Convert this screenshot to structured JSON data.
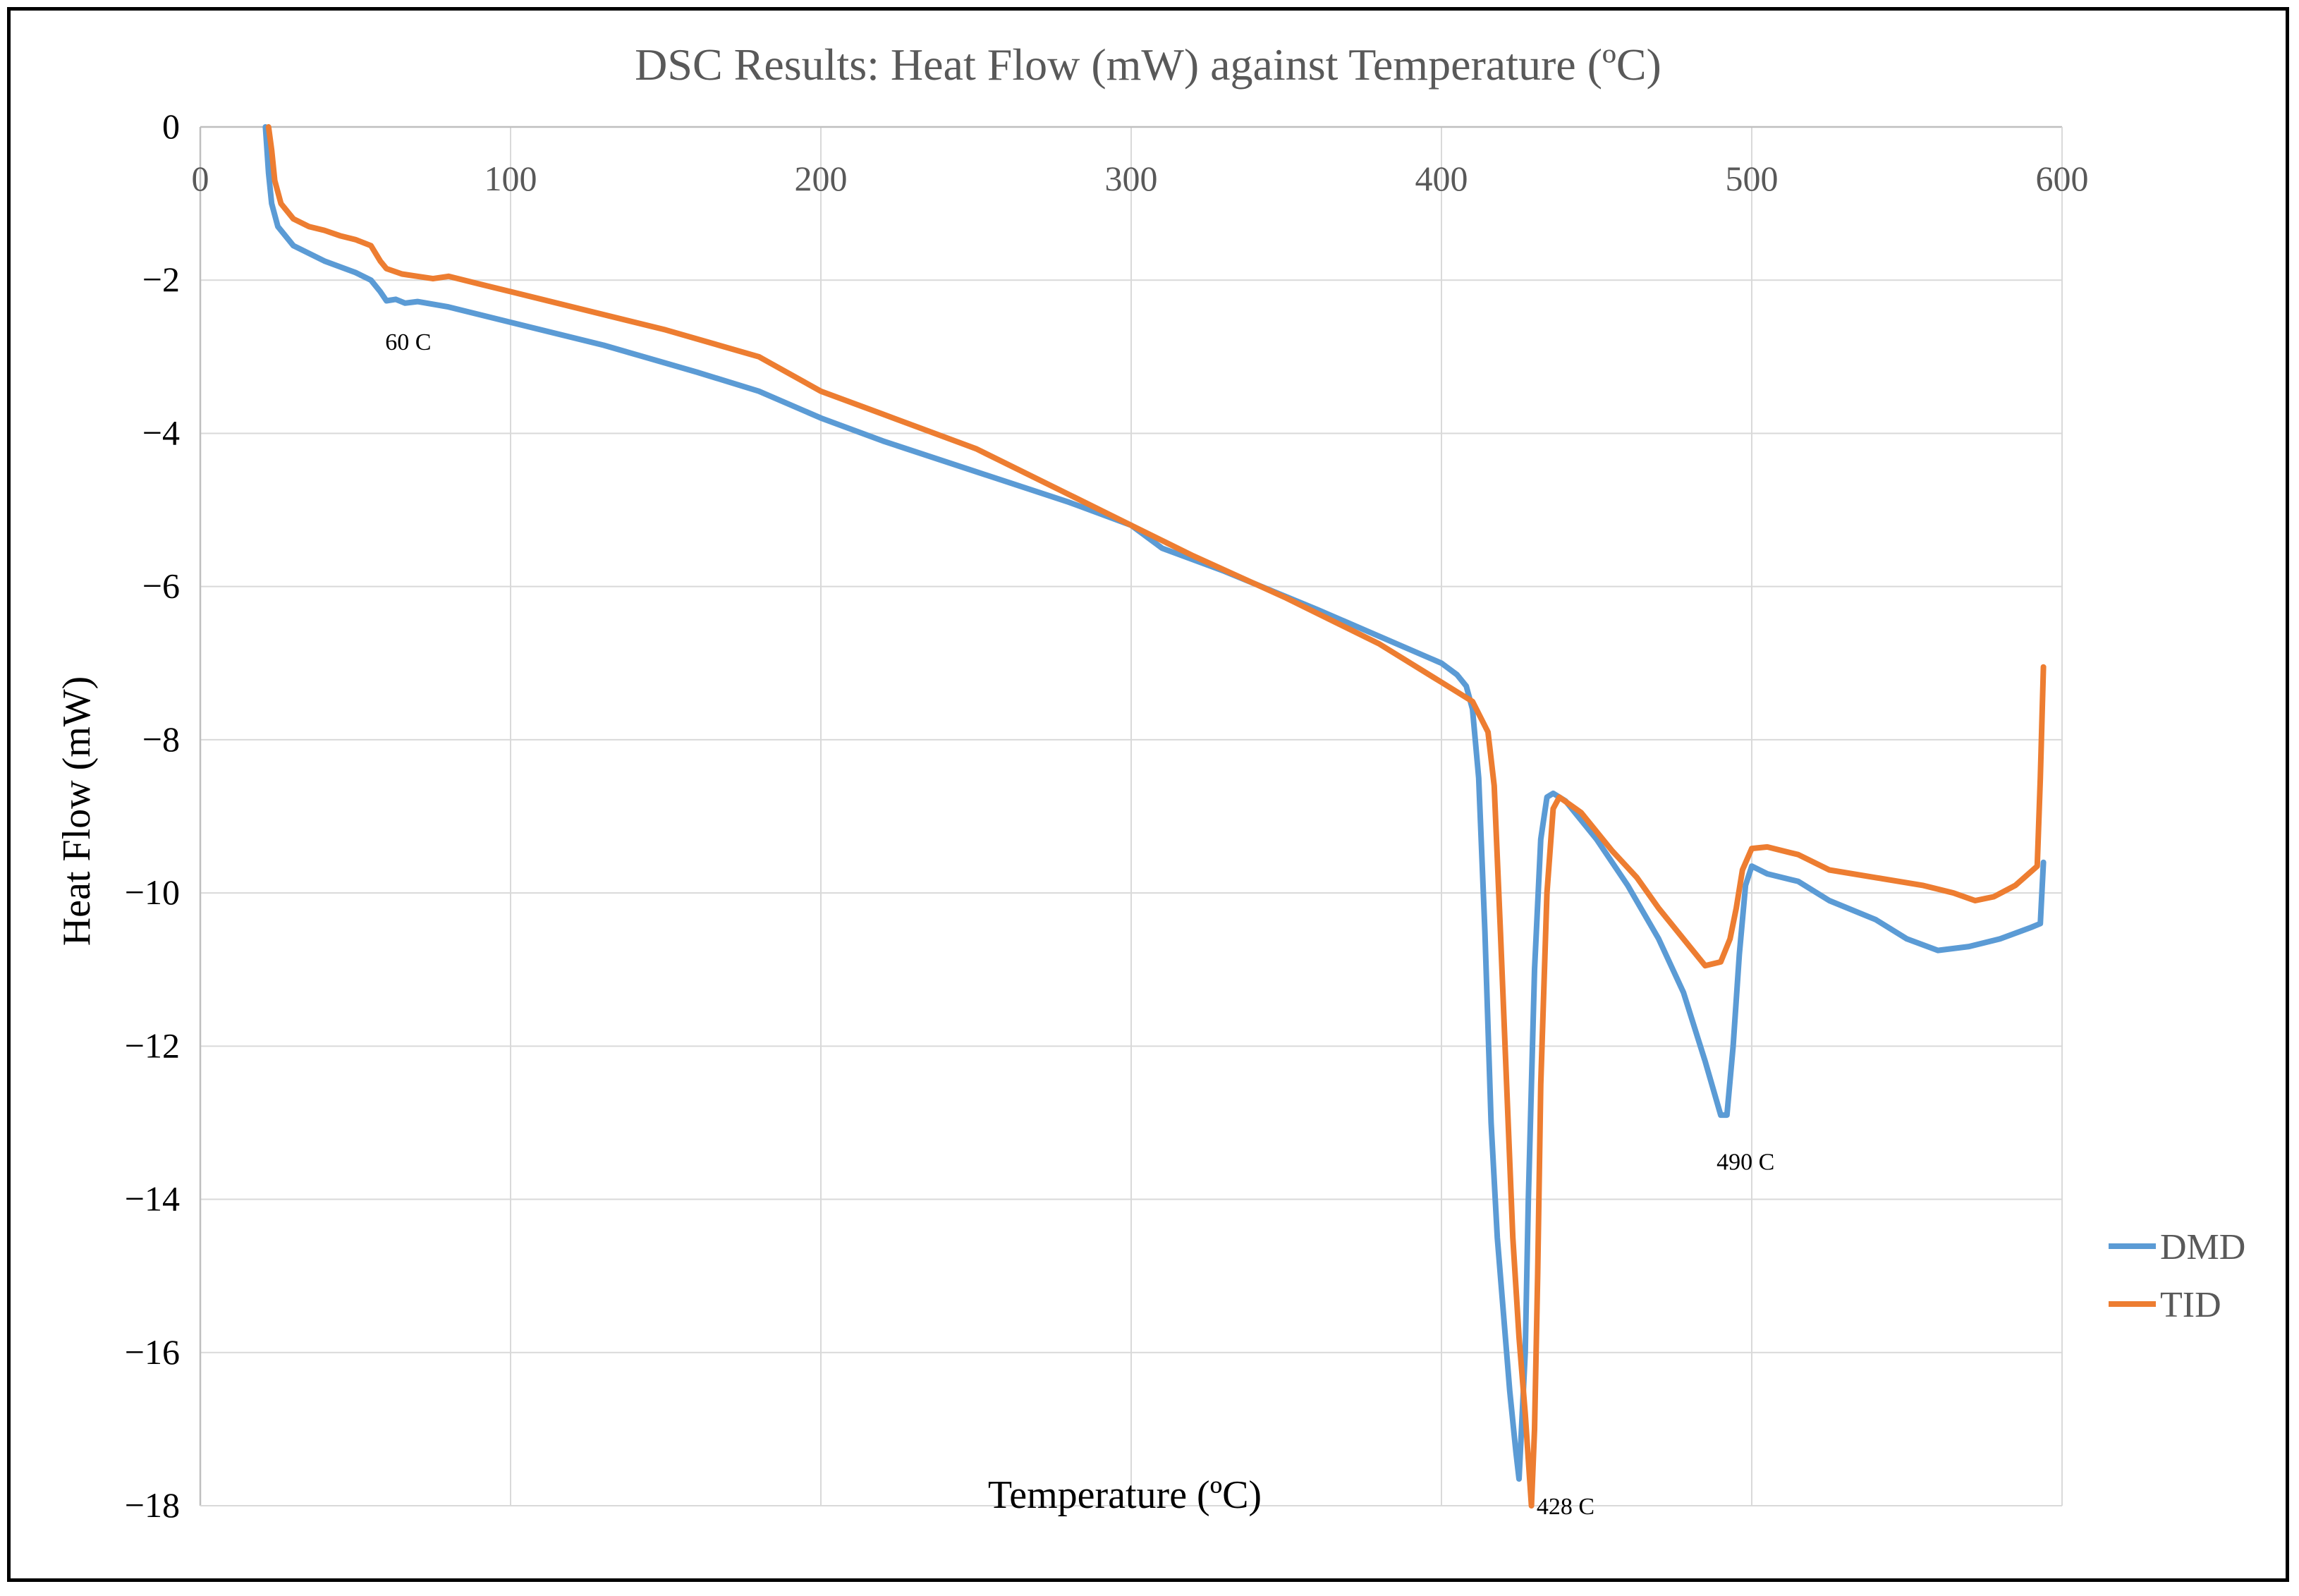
{
  "chart_data": {
    "type": "line",
    "title": "DSC Results: Heat Flow (mW) against Temperature (ºC)",
    "xlabel": "Temperature (ºC)",
    "ylabel": "Heat Flow (mW)",
    "xlim": [
      0,
      600
    ],
    "ylim": [
      -18,
      0
    ],
    "x_ticks": [
      0,
      100,
      200,
      300,
      400,
      500,
      600
    ],
    "x_tick_labels": [
      "0",
      "100",
      "200",
      "300",
      "400",
      "500",
      "600"
    ],
    "y_ticks": [
      0,
      -2,
      -4,
      -6,
      -8,
      -10,
      -12,
      -14,
      -16,
      -18
    ],
    "y_tick_labels": [
      "0",
      "−2",
      "−4",
      "−6",
      "−8",
      "−10",
      "−12",
      "−14",
      "−16",
      "−18"
    ],
    "grid": true,
    "legend_position": "right",
    "series": [
      {
        "name": "DMD",
        "color": "#5b9bd5",
        "points": [
          [
            21,
            0
          ],
          [
            22,
            -0.6
          ],
          [
            23,
            -1.0
          ],
          [
            25,
            -1.3
          ],
          [
            30,
            -1.55
          ],
          [
            40,
            -1.75
          ],
          [
            50,
            -1.9
          ],
          [
            55,
            -2.0
          ],
          [
            58,
            -2.15
          ],
          [
            60,
            -2.27
          ],
          [
            63,
            -2.25
          ],
          [
            66,
            -2.3
          ],
          [
            70,
            -2.28
          ],
          [
            80,
            -2.35
          ],
          [
            100,
            -2.55
          ],
          [
            130,
            -2.85
          ],
          [
            160,
            -3.2
          ],
          [
            180,
            -3.45
          ],
          [
            200,
            -3.8
          ],
          [
            220,
            -4.1
          ],
          [
            250,
            -4.5
          ],
          [
            280,
            -4.9
          ],
          [
            300,
            -5.2
          ],
          [
            310,
            -5.5
          ],
          [
            330,
            -5.8
          ],
          [
            360,
            -6.3
          ],
          [
            380,
            -6.65
          ],
          [
            400,
            -7.0
          ],
          [
            405,
            -7.15
          ],
          [
            408,
            -7.3
          ],
          [
            410,
            -7.6
          ],
          [
            412,
            -8.5
          ],
          [
            414,
            -10.5
          ],
          [
            416,
            -13.0
          ],
          [
            418,
            -14.5
          ],
          [
            420,
            -15.5
          ],
          [
            422,
            -16.5
          ],
          [
            424,
            -17.3
          ],
          [
            425,
            -17.65
          ],
          [
            427,
            -16.0
          ],
          [
            428,
            -14.0
          ],
          [
            430,
            -11.0
          ],
          [
            432,
            -9.3
          ],
          [
            434,
            -8.75
          ],
          [
            436,
            -8.7
          ],
          [
            440,
            -8.8
          ],
          [
            450,
            -9.3
          ],
          [
            460,
            -9.9
          ],
          [
            470,
            -10.6
          ],
          [
            478,
            -11.3
          ],
          [
            485,
            -12.2
          ],
          [
            490,
            -12.9
          ],
          [
            492,
            -12.9
          ],
          [
            494,
            -12.0
          ],
          [
            496,
            -10.8
          ],
          [
            498,
            -9.9
          ],
          [
            500,
            -9.65
          ],
          [
            505,
            -9.75
          ],
          [
            515,
            -9.85
          ],
          [
            525,
            -10.1
          ],
          [
            540,
            -10.35
          ],
          [
            550,
            -10.6
          ],
          [
            560,
            -10.75
          ],
          [
            570,
            -10.7
          ],
          [
            580,
            -10.6
          ],
          [
            590,
            -10.45
          ],
          [
            593,
            -10.4
          ],
          [
            594,
            -9.6
          ]
        ]
      },
      {
        "name": "TID",
        "color": "#ed7d31",
        "points": [
          [
            22,
            0
          ],
          [
            23,
            -0.3
          ],
          [
            24,
            -0.7
          ],
          [
            26,
            -1.0
          ],
          [
            30,
            -1.2
          ],
          [
            35,
            -1.3
          ],
          [
            40,
            -1.35
          ],
          [
            45,
            -1.42
          ],
          [
            50,
            -1.47
          ],
          [
            55,
            -1.55
          ],
          [
            58,
            -1.75
          ],
          [
            60,
            -1.85
          ],
          [
            65,
            -1.92
          ],
          [
            70,
            -1.95
          ],
          [
            75,
            -1.98
          ],
          [
            80,
            -1.95
          ],
          [
            90,
            -2.05
          ],
          [
            100,
            -2.15
          ],
          [
            120,
            -2.35
          ],
          [
            150,
            -2.65
          ],
          [
            180,
            -3.0
          ],
          [
            200,
            -3.45
          ],
          [
            220,
            -3.75
          ],
          [
            250,
            -4.2
          ],
          [
            280,
            -4.8
          ],
          [
            300,
            -5.2
          ],
          [
            320,
            -5.6
          ],
          [
            350,
            -6.15
          ],
          [
            380,
            -6.75
          ],
          [
            400,
            -7.25
          ],
          [
            410,
            -7.5
          ],
          [
            415,
            -7.9
          ],
          [
            417,
            -8.6
          ],
          [
            419,
            -10.5
          ],
          [
            421,
            -12.5
          ],
          [
            423,
            -14.5
          ],
          [
            425,
            -15.8
          ],
          [
            427,
            -16.8
          ],
          [
            428,
            -17.4
          ],
          [
            429,
            -18.0
          ],
          [
            430,
            -17.0
          ],
          [
            431,
            -15.0
          ],
          [
            432,
            -12.5
          ],
          [
            434,
            -10.0
          ],
          [
            436,
            -8.9
          ],
          [
            438,
            -8.75
          ],
          [
            445,
            -8.95
          ],
          [
            455,
            -9.45
          ],
          [
            463,
            -9.8
          ],
          [
            470,
            -10.2
          ],
          [
            478,
            -10.6
          ],
          [
            485,
            -10.95
          ],
          [
            490,
            -10.9
          ],
          [
            493,
            -10.6
          ],
          [
            495,
            -10.2
          ],
          [
            497,
            -9.7
          ],
          [
            500,
            -9.42
          ],
          [
            505,
            -9.4
          ],
          [
            515,
            -9.5
          ],
          [
            525,
            -9.7
          ],
          [
            540,
            -9.8
          ],
          [
            555,
            -9.9
          ],
          [
            565,
            -10.0
          ],
          [
            572,
            -10.1
          ],
          [
            578,
            -10.05
          ],
          [
            585,
            -9.9
          ],
          [
            592,
            -9.65
          ],
          [
            593,
            -8.5
          ],
          [
            594,
            -7.05
          ]
        ]
      }
    ],
    "annotations": [
      {
        "text": "60 C",
        "x": 67,
        "y": -2.8
      },
      {
        "text": "428 C",
        "x": 440,
        "y": -18.0
      },
      {
        "text": "490 C",
        "x": 498,
        "y": -13.5
      }
    ]
  }
}
